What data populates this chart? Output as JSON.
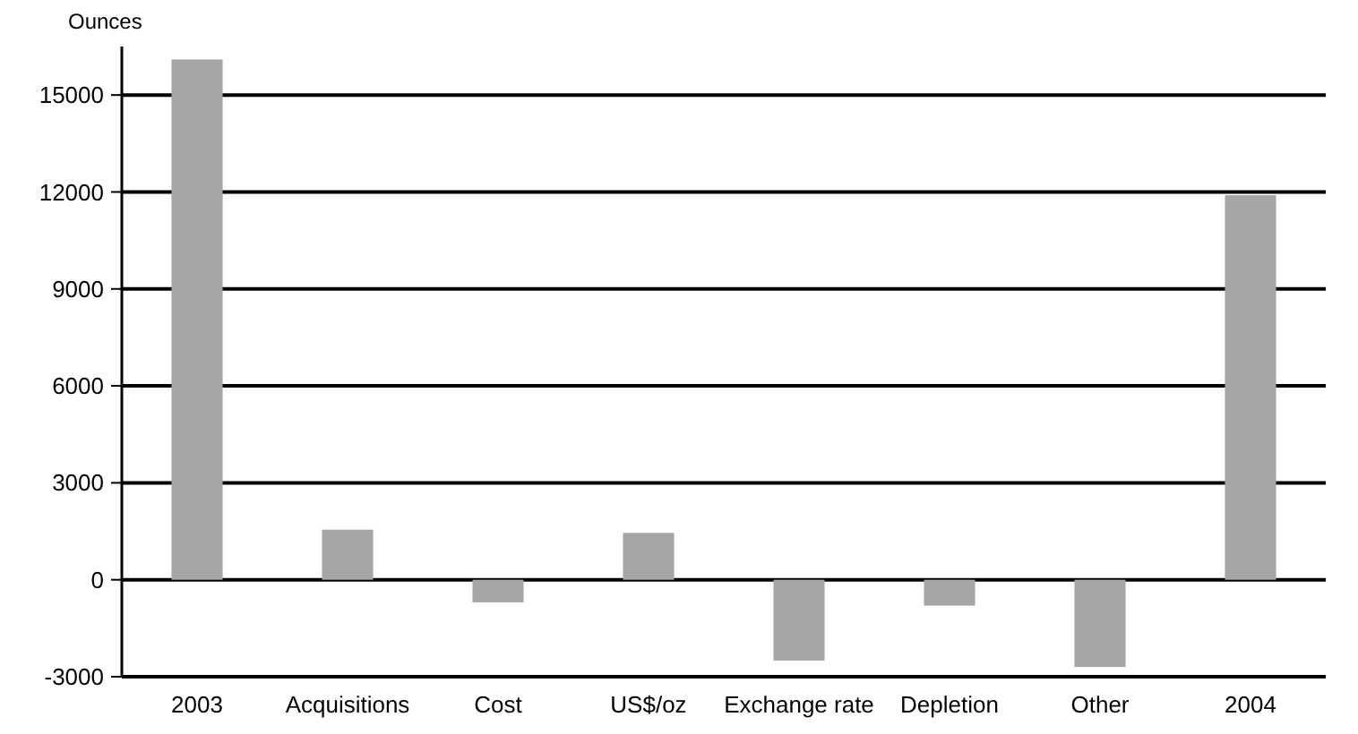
{
  "chart_data": {
    "type": "bar",
    "ylabel": "Ounces",
    "categories": [
      "2003",
      "Acquisitions",
      "Cost",
      "US$/oz",
      "Exchange rate",
      "Depletion",
      "Other",
      "2004"
    ],
    "values": [
      16100,
      1550,
      -700,
      1450,
      -2500,
      -800,
      -2700,
      11900
    ],
    "color": "#a6a6a6",
    "ylim": [
      -3000,
      16500
    ],
    "yticks": [
      -3000,
      0,
      3000,
      6000,
      9000,
      12000,
      15000
    ],
    "grid": "y"
  }
}
